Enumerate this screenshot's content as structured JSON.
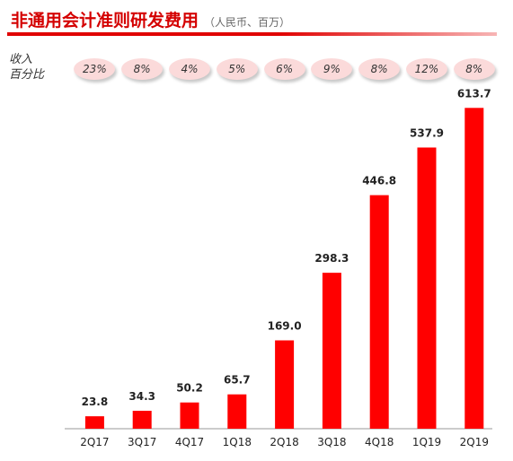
{
  "header": {
    "title": "非通用会计准则研发费用",
    "unit": "（人民币、百万）"
  },
  "percent_row": {
    "label": "收入\n百分比",
    "values": [
      "23%",
      "8%",
      "4%",
      "5%",
      "6%",
      "9%",
      "8%",
      "12%",
      "8%"
    ]
  },
  "colors": {
    "bar": "#ff0000",
    "title": "#d40000",
    "pill": "#fbdada"
  },
  "chart_data": {
    "type": "bar",
    "categories": [
      "2Q17",
      "3Q17",
      "4Q17",
      "1Q18",
      "2Q18",
      "3Q18",
      "4Q18",
      "1Q19",
      "2Q19"
    ],
    "values": [
      23.8,
      34.3,
      50.2,
      65.7,
      169.0,
      298.3,
      446.8,
      537.9,
      613.7
    ],
    "value_labels": [
      "23.8",
      "34.3",
      "50.2",
      "65.7",
      "169.0",
      "298.3",
      "446.8",
      "537.9",
      "613.7"
    ],
    "title": "",
    "xlabel": "",
    "ylabel": "",
    "ylim": [
      0,
      700
    ],
    "grid": false
  }
}
